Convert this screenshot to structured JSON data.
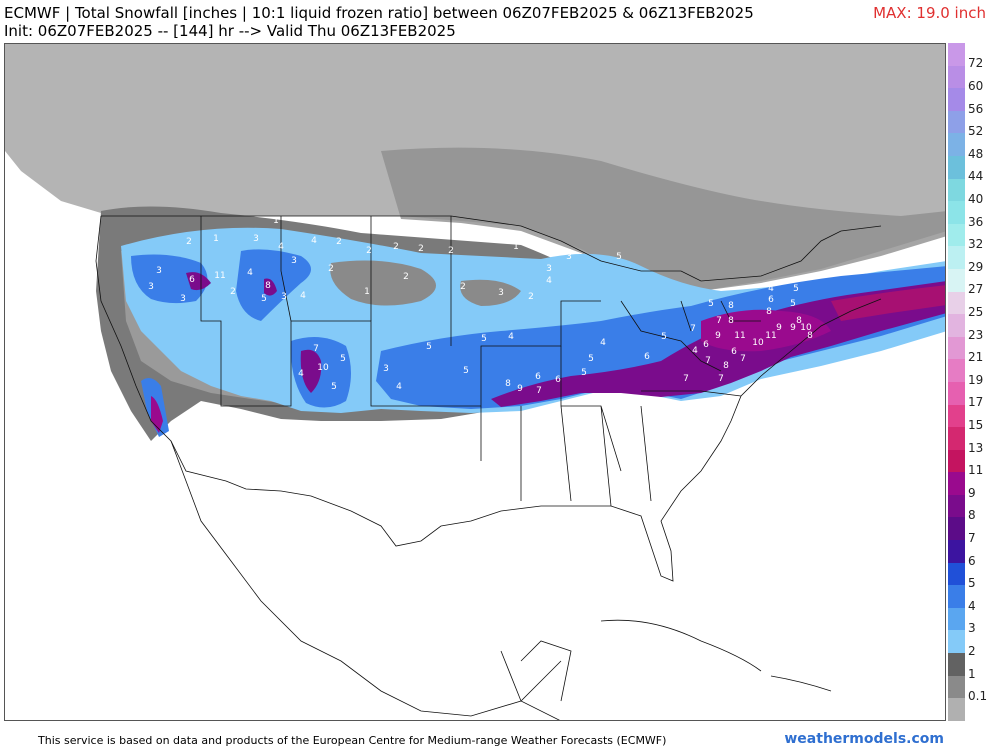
{
  "header": {
    "title_line1": "ECMWF | Total Snowfall [inches | 10:1 liquid frozen ratio] between 06Z07FEB2025 & 06Z13FEB2025",
    "title_line2": "Init: 06Z07FEB2025 -- [144] hr --> Valid Thu 06Z13FEB2025",
    "max_label": "MAX: 19.0 inch"
  },
  "colorbar": {
    "levels": [
      "72",
      "60",
      "56",
      "52",
      "48",
      "44",
      "40",
      "36",
      "32",
      "29",
      "27",
      "25",
      "23",
      "21",
      "19",
      "17",
      "15",
      "13",
      "11",
      "9",
      "8",
      "7",
      "6",
      "5",
      "4",
      "3",
      "2",
      "1",
      "0.1"
    ],
    "colors": [
      "#c998e8",
      "#b98ee6",
      "#a58ae8",
      "#8ea0e8",
      "#7cb2e6",
      "#6cc0dc",
      "#7ed8e0",
      "#8ce4e8",
      "#a0ecec",
      "#bcf0f2",
      "#d8f4f4",
      "#e8d0e8",
      "#e2b4e0",
      "#e298d4",
      "#e67cc4",
      "#e660b0",
      "#e2408c",
      "#d42870",
      "#c41460",
      "#9a0a8e",
      "#7a0c8c",
      "#5c0c88",
      "#3c14a0",
      "#2050d8",
      "#3a7ee8",
      "#5aa6f0",
      "#84caf8",
      "#626262",
      "#8a8a8a",
      "#b0b0b0"
    ]
  },
  "map_labels": [
    {
      "v": "1",
      "x": 275,
      "y": 222
    },
    {
      "v": "1",
      "x": 215,
      "y": 240
    },
    {
      "v": "2",
      "x": 188,
      "y": 243
    },
    {
      "v": "3",
      "x": 255,
      "y": 240
    },
    {
      "v": "4",
      "x": 280,
      "y": 248
    },
    {
      "v": "3",
      "x": 293,
      "y": 262
    },
    {
      "v": "4",
      "x": 313,
      "y": 242
    },
    {
      "v": "2",
      "x": 338,
      "y": 243
    },
    {
      "v": "2",
      "x": 368,
      "y": 252
    },
    {
      "v": "2",
      "x": 395,
      "y": 248
    },
    {
      "v": "2",
      "x": 420,
      "y": 250
    },
    {
      "v": "2",
      "x": 450,
      "y": 252
    },
    {
      "v": "1",
      "x": 515,
      "y": 248
    },
    {
      "v": "3",
      "x": 548,
      "y": 270
    },
    {
      "v": "4",
      "x": 548,
      "y": 282
    },
    {
      "v": "3",
      "x": 568,
      "y": 258
    },
    {
      "v": "5",
      "x": 618,
      "y": 258
    },
    {
      "v": "6",
      "x": 191,
      "y": 281
    },
    {
      "v": "11",
      "x": 219,
      "y": 277
    },
    {
      "v": "3",
      "x": 150,
      "y": 288
    },
    {
      "v": "3",
      "x": 158,
      "y": 272
    },
    {
      "v": "3",
      "x": 182,
      "y": 300
    },
    {
      "v": "8",
      "x": 267,
      "y": 287
    },
    {
      "v": "5",
      "x": 263,
      "y": 300
    },
    {
      "v": "4",
      "x": 249,
      "y": 274
    },
    {
      "v": "2",
      "x": 232,
      "y": 293
    },
    {
      "v": "3",
      "x": 283,
      "y": 298
    },
    {
      "v": "4",
      "x": 302,
      "y": 297
    },
    {
      "v": "2",
      "x": 330,
      "y": 270
    },
    {
      "v": "1",
      "x": 366,
      "y": 293
    },
    {
      "v": "2",
      "x": 405,
      "y": 278
    },
    {
      "v": "2",
      "x": 462,
      "y": 288
    },
    {
      "v": "2",
      "x": 530,
      "y": 298
    },
    {
      "v": "3",
      "x": 500,
      "y": 294
    },
    {
      "v": "7",
      "x": 315,
      "y": 350
    },
    {
      "v": "5",
      "x": 342,
      "y": 360
    },
    {
      "v": "10",
      "x": 322,
      "y": 369
    },
    {
      "v": "5",
      "x": 333,
      "y": 388
    },
    {
      "v": "4",
      "x": 300,
      "y": 375
    },
    {
      "v": "3",
      "x": 385,
      "y": 370
    },
    {
      "v": "4",
      "x": 398,
      "y": 388
    },
    {
      "v": "5",
      "x": 428,
      "y": 348
    },
    {
      "v": "5",
      "x": 465,
      "y": 372
    },
    {
      "v": "5",
      "x": 483,
      "y": 340
    },
    {
      "v": "4",
      "x": 510,
      "y": 338
    },
    {
      "v": "8",
      "x": 507,
      "y": 385
    },
    {
      "v": "9",
      "x": 519,
      "y": 390
    },
    {
      "v": "6",
      "x": 537,
      "y": 378
    },
    {
      "v": "7",
      "x": 538,
      "y": 392
    },
    {
      "v": "6",
      "x": 557,
      "y": 381
    },
    {
      "v": "5",
      "x": 590,
      "y": 360
    },
    {
      "v": "4",
      "x": 602,
      "y": 344
    },
    {
      "v": "5",
      "x": 583,
      "y": 374
    },
    {
      "v": "5",
      "x": 710,
      "y": 305
    },
    {
      "v": "8",
      "x": 730,
      "y": 307
    },
    {
      "v": "7",
      "x": 718,
      "y": 322
    },
    {
      "v": "8",
      "x": 730,
      "y": 322
    },
    {
      "v": "9",
      "x": 717,
      "y": 337
    },
    {
      "v": "11",
      "x": 739,
      "y": 337
    },
    {
      "v": "10",
      "x": 757,
      "y": 344
    },
    {
      "v": "11",
      "x": 770,
      "y": 337
    },
    {
      "v": "9",
      "x": 778,
      "y": 329
    },
    {
      "v": "10",
      "x": 805,
      "y": 329
    },
    {
      "v": "8",
      "x": 809,
      "y": 337
    },
    {
      "v": "9",
      "x": 792,
      "y": 329
    },
    {
      "v": "8",
      "x": 798,
      "y": 322
    },
    {
      "v": "7",
      "x": 692,
      "y": 330
    },
    {
      "v": "6",
      "x": 705,
      "y": 346
    },
    {
      "v": "4",
      "x": 694,
      "y": 352
    },
    {
      "v": "7",
      "x": 707,
      "y": 362
    },
    {
      "v": "8",
      "x": 725,
      "y": 367
    },
    {
      "v": "6",
      "x": 733,
      "y": 353
    },
    {
      "v": "7",
      "x": 742,
      "y": 360
    },
    {
      "v": "8",
      "x": 768,
      "y": 313
    },
    {
      "v": "6",
      "x": 770,
      "y": 301
    },
    {
      "v": "5",
      "x": 792,
      "y": 305
    },
    {
      "v": "4",
      "x": 770,
      "y": 290
    },
    {
      "v": "5",
      "x": 795,
      "y": 290
    },
    {
      "v": "7",
      "x": 685,
      "y": 380
    },
    {
      "v": "7",
      "x": 720,
      "y": 380
    },
    {
      "v": "6",
      "x": 646,
      "y": 358
    },
    {
      "v": "5",
      "x": 663,
      "y": 338
    }
  ],
  "footer": {
    "disclaimer": "This service is based on data and products of the European Centre for Medium-range Weather Forecasts (ECMWF)",
    "brand": "weathermodels.com"
  }
}
